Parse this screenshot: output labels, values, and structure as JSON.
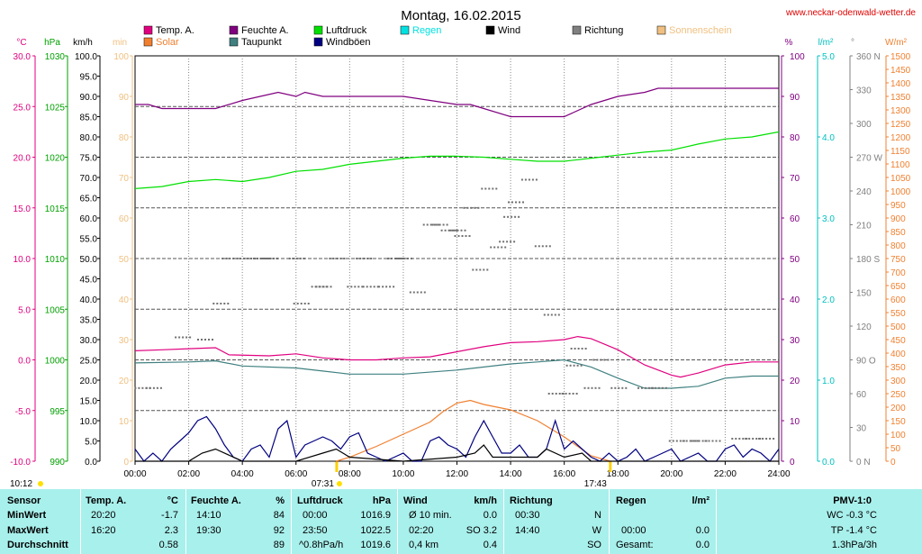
{
  "header": {
    "title": "Montag, 16.02.2015",
    "site": "www.neckar-odenwald-wetter.de"
  },
  "legend": [
    {
      "label": "Temp. A.",
      "color": "#e0007f"
    },
    {
      "label": "Feuchte A.",
      "color": "#800080"
    },
    {
      "label": "Luftdruck",
      "color": "#00e000"
    },
    {
      "label": "Regen",
      "color": "#00e0e0"
    },
    {
      "label": "Wind",
      "color": "#000000"
    },
    {
      "label": "Richtung",
      "color": "#808080"
    },
    {
      "label": "Sonnenschein",
      "color": "#f0c080"
    },
    {
      "label": "Solar",
      "color": "#f08030"
    },
    {
      "label": "Taupunkt",
      "color": "#408080"
    },
    {
      "label": "Windböen",
      "color": "#000080"
    }
  ],
  "axes": {
    "temp_unit": "°C",
    "hpa_unit": "hPa",
    "kmh_unit": "km/h",
    "min_unit": "min",
    "pct_unit": "%",
    "rain_unit": "l/m²",
    "dir_unit": "°",
    "solar_unit": "W/m²",
    "temp_ticks": [
      "30.0",
      "25.0",
      "20.0",
      "15.0",
      "10.0",
      "5.0",
      "0.0",
      "-5.0",
      "-10.0"
    ],
    "hpa_ticks": [
      "1030",
      "1025",
      "1020",
      "1015",
      "1010",
      "1005",
      "1000",
      "995",
      "990"
    ],
    "kmh_ticks": [
      "100.0",
      "95.0",
      "90.0",
      "85.0",
      "80.0",
      "75.0",
      "70.0",
      "65.0",
      "60.0",
      "55.0",
      "50.0",
      "45.0",
      "40.0",
      "35.0",
      "30.0",
      "25.0",
      "20.0",
      "15.0",
      "10.0",
      "5.0",
      "0.0"
    ],
    "min_ticks": [
      "100",
      "90",
      "80",
      "70",
      "60",
      "50",
      "40",
      "30",
      "20",
      "10",
      "0"
    ],
    "pct_ticks": [
      "100",
      "90",
      "80",
      "70",
      "60",
      "50",
      "40",
      "30",
      "20",
      "10",
      "0"
    ],
    "rain_ticks": [
      "5.0",
      "4.0",
      "3.0",
      "2.0",
      "1.0",
      "0.0"
    ],
    "dir_ticks": [
      "360 N",
      "330",
      "300",
      "270 W",
      "240",
      "210",
      "180 S",
      "150",
      "120",
      "90 O",
      "60",
      "30",
      "0 N"
    ],
    "solar_ticks": [
      "1500",
      "1450",
      "1400",
      "1350",
      "1300",
      "1250",
      "1200",
      "1150",
      "1100",
      "1050",
      "1000",
      "950",
      "900",
      "850",
      "800",
      "750",
      "700",
      "650",
      "600",
      "550",
      "500",
      "450",
      "400",
      "350",
      "300",
      "250",
      "200",
      "150",
      "100",
      "50",
      "0"
    ],
    "time_ticks": [
      "00:00",
      "02:00",
      "04:00",
      "06:00",
      "08:00",
      "10:00",
      "12:00",
      "14:00",
      "16:00",
      "18:00",
      "20:00",
      "22:00",
      "24:00"
    ],
    "sun_markers": {
      "daylength": "10:12",
      "sunrise": "07:31",
      "sunset": "17:43"
    }
  },
  "chart_data": {
    "type": "line",
    "x_unit": "time of day",
    "xlim": [
      "00:00",
      "24:00"
    ],
    "series": [
      {
        "name": "Temp. A.",
        "axis": "°C",
        "ylim": [
          -10,
          30
        ],
        "x": [
          "00:00",
          "01:00",
          "02:00",
          "03:00",
          "03:30",
          "05:00",
          "06:00",
          "07:00",
          "08:00",
          "09:00",
          "10:00",
          "11:00",
          "12:00",
          "13:00",
          "14:00",
          "15:00",
          "16:00",
          "16:30",
          "17:00",
          "18:00",
          "19:00",
          "20:00",
          "20:20",
          "21:00",
          "22:00",
          "23:00",
          "24:00"
        ],
        "y": [
          0.9,
          1.0,
          1.1,
          1.2,
          0.5,
          0.4,
          0.6,
          0.2,
          0.0,
          0.0,
          0.2,
          0.3,
          0.8,
          1.3,
          1.7,
          1.8,
          2.0,
          2.3,
          2.1,
          1.0,
          -0.5,
          -1.5,
          -1.7,
          -1.3,
          -0.5,
          -0.2,
          -0.2
        ]
      },
      {
        "name": "Taupunkt",
        "axis": "°C",
        "ylim": [
          -10,
          30
        ],
        "x": [
          "00:00",
          "02:00",
          "03:00",
          "04:00",
          "06:00",
          "07:00",
          "08:00",
          "10:00",
          "12:00",
          "14:00",
          "15:00",
          "16:00",
          "17:00",
          "18:00",
          "19:00",
          "20:00",
          "21:00",
          "22:00",
          "23:00",
          "24:00"
        ],
        "y": [
          -0.3,
          -0.2,
          -0.1,
          -0.6,
          -0.8,
          -1.1,
          -1.4,
          -1.4,
          -1.0,
          -0.4,
          -0.2,
          0.0,
          -0.7,
          -1.8,
          -2.8,
          -2.8,
          -2.6,
          -1.8,
          -1.6,
          -1.6
        ]
      },
      {
        "name": "Feuchte A.",
        "axis": "%",
        "ylim": [
          0,
          100
        ],
        "x": [
          "00:00",
          "00:30",
          "01:00",
          "03:00",
          "04:00",
          "04:40",
          "05:20",
          "06:00",
          "06:20",
          "07:00",
          "08:00",
          "09:00",
          "10:00",
          "11:00",
          "12:00",
          "12:30",
          "13:00",
          "14:00",
          "15:00",
          "16:00",
          "17:00",
          "18:00",
          "19:00",
          "19:30",
          "20:00",
          "21:00",
          "22:00",
          "23:00",
          "24:00"
        ],
        "y": [
          88,
          88,
          87,
          87,
          89,
          90,
          91,
          90,
          91,
          90,
          90,
          90,
          90,
          89,
          88,
          88,
          87,
          85,
          85,
          85,
          88,
          90,
          91,
          92,
          92,
          92,
          92,
          92,
          92
        ]
      },
      {
        "name": "Luftdruck",
        "axis": "hPa",
        "ylim": [
          990,
          1030
        ],
        "x": [
          "00:00",
          "01:00",
          "02:00",
          "03:00",
          "04:00",
          "05:00",
          "06:00",
          "07:00",
          "08:00",
          "09:00",
          "10:00",
          "11:00",
          "12:00",
          "13:00",
          "14:00",
          "15:00",
          "16:00",
          "17:00",
          "18:00",
          "19:00",
          "20:00",
          "21:00",
          "22:00",
          "23:00",
          "24:00"
        ],
        "y": [
          1016.9,
          1017.1,
          1017.6,
          1017.8,
          1017.6,
          1018.0,
          1018.6,
          1018.8,
          1019.3,
          1019.6,
          1019.9,
          1020.1,
          1020.1,
          1020.0,
          1019.8,
          1019.6,
          1019.6,
          1019.9,
          1020.2,
          1020.5,
          1020.7,
          1021.3,
          1021.8,
          1022.0,
          1022.5
        ]
      },
      {
        "name": "Windböen",
        "axis": "km/h",
        "ylim": [
          0,
          100
        ],
        "x": [
          "00:00",
          "00:20",
          "00:40",
          "01:00",
          "01:20",
          "01:40",
          "02:00",
          "02:20",
          "02:40",
          "03:00",
          "03:20",
          "03:40",
          "04:00",
          "04:20",
          "04:40",
          "05:00",
          "05:20",
          "05:40",
          "06:00",
          "06:20",
          "06:40",
          "07:00",
          "07:20",
          "07:40",
          "08:00",
          "08:20",
          "08:40",
          "09:00",
          "09:20",
          "09:40",
          "10:00",
          "10:20",
          "10:40",
          "11:00",
          "11:20",
          "11:40",
          "12:00",
          "12:20",
          "12:40",
          "13:00",
          "13:20",
          "13:40",
          "14:00",
          "14:20",
          "14:40",
          "15:00",
          "15:20",
          "15:40",
          "16:00",
          "16:20",
          "16:40",
          "17:00",
          "17:20",
          "17:40",
          "18:00",
          "18:20",
          "18:40",
          "19:00",
          "19:20",
          "19:40",
          "20:00",
          "20:20",
          "20:40",
          "21:00",
          "21:20",
          "21:40",
          "22:00",
          "22:20",
          "22:40",
          "23:00",
          "23:20",
          "23:40",
          "24:00"
        ],
        "y": [
          3,
          0,
          2,
          0,
          3,
          5,
          7,
          10,
          11,
          8,
          4,
          1,
          0,
          3,
          4,
          1,
          8,
          10,
          1,
          4,
          5,
          6,
          5,
          3,
          6,
          7,
          2,
          1,
          0,
          1,
          2,
          0,
          0,
          5,
          6,
          4,
          3,
          1,
          6,
          10,
          6,
          2,
          2,
          4,
          1,
          1,
          3,
          10,
          3,
          5,
          3,
          1,
          0,
          2,
          0,
          1,
          3,
          0,
          1,
          2,
          3,
          0,
          1,
          2,
          0,
          0,
          3,
          4,
          1,
          3,
          2,
          0,
          3
        ]
      },
      {
        "name": "Wind",
        "axis": "km/h",
        "ylim": [
          0,
          100
        ],
        "x": [
          "00:00",
          "02:00",
          "02:30",
          "03:00",
          "04:00",
          "06:00",
          "07:00",
          "07:30",
          "08:00",
          "10:00",
          "12:00",
          "12:40",
          "13:00",
          "13:20",
          "14:00",
          "15:00",
          "15:20",
          "16:00",
          "16:40",
          "17:00",
          "18:00",
          "20:00",
          "24:00"
        ],
        "y": [
          0,
          0,
          2,
          3,
          0,
          0,
          2,
          3,
          1,
          0,
          1,
          2,
          4,
          1,
          1,
          1,
          3,
          1,
          2,
          0,
          0,
          0,
          0
        ]
      },
      {
        "name": "Solar",
        "axis": "W/m²",
        "ylim": [
          0,
          1500
        ],
        "x": [
          "07:30",
          "08:00",
          "09:00",
          "10:00",
          "11:00",
          "11:30",
          "12:00",
          "12:30",
          "13:00",
          "13:30",
          "14:00",
          "15:00",
          "16:00",
          "16:30",
          "17:00",
          "17:43"
        ],
        "y": [
          0,
          15,
          55,
          100,
          145,
          185,
          215,
          225,
          210,
          200,
          190,
          150,
          90,
          55,
          20,
          0
        ]
      },
      {
        "name": "Richtung",
        "axis": "°",
        "ylim": [
          0,
          360
        ],
        "x": [
          "00:15",
          "00:40",
          "01:45",
          "02:35",
          "03:10",
          "03:30",
          "04:10",
          "04:40",
          "05:00",
          "06:00",
          "06:10",
          "06:50",
          "07:00",
          "07:30",
          "08:10",
          "08:30",
          "08:45",
          "09:20",
          "09:40",
          "10:00",
          "10:30",
          "11:00",
          "11:20",
          "11:40",
          "12:00",
          "12:10",
          "12:30",
          "12:50",
          "13:10",
          "13:30",
          "13:50",
          "14:00",
          "14:10",
          "14:40",
          "15:10",
          "15:30",
          "15:40",
          "16:10",
          "16:20",
          "16:30",
          "17:00",
          "17:20",
          "18:00",
          "19:00",
          "19:30",
          "20:10",
          "20:40",
          "21:00",
          "21:30",
          "22:30",
          "23:00",
          "23:30"
        ],
        "y": [
          65,
          65,
          110,
          108,
          140,
          180,
          180,
          180,
          180,
          180,
          140,
          155,
          155,
          180,
          155,
          180,
          155,
          155,
          180,
          180,
          150,
          210,
          210,
          205,
          205,
          200,
          225,
          170,
          242,
          190,
          195,
          217,
          230,
          250,
          191,
          130,
          60,
          60,
          85,
          100,
          65,
          90,
          65,
          65,
          65,
          18,
          18,
          18,
          18,
          20,
          20,
          20
        ]
      }
    ]
  },
  "table": {
    "headers": {
      "sensor": "Sensor",
      "temp": "Temp. A.",
      "temp_unit": "°C",
      "hum": "Feuchte A.",
      "hum_unit": "%",
      "press": "Luftdruck",
      "press_unit": "hPa",
      "wind": "Wind",
      "wind_unit": "km/h",
      "dir": "Richtung",
      "rain": "Regen",
      "rain_unit": "l/m²",
      "pmv": "PMV-1:0"
    },
    "rows": [
      {
        "label": "MinWert",
        "temp_time": "20:20",
        "temp_val": "-1.7",
        "hum_time": "14:10",
        "hum_val": "84",
        "press_time": "00:00",
        "press_val": "1016.9",
        "wind_time": "Ø 10 min.",
        "wind_val": "0.0",
        "dir_time": "00:30",
        "dir_val": "N",
        "rain_time": "",
        "rain_val": "",
        "pmv": "WC -0.3 °C"
      },
      {
        "label": "MaxWert",
        "temp_time": "16:20",
        "temp_val": "2.3",
        "hum_time": "19:30",
        "hum_val": "92",
        "press_time": "23:50",
        "press_val": "1022.5",
        "wind_time": "02:20",
        "wind_val": "SO 3.2",
        "dir_time": "14:40",
        "dir_val": "W",
        "rain_time": "00:00",
        "rain_val": "0.0",
        "pmv": "TP -1.4 °C"
      },
      {
        "label": "Durchschnitt",
        "temp_time": "",
        "temp_val": "0.58",
        "hum_time": "",
        "hum_val": "89",
        "press_time": "^0.8hPa/h",
        "press_val": "1019.6",
        "wind_time": "0,4 km",
        "wind_val": "0.4",
        "dir_time": "",
        "dir_val": "SO",
        "rain_time": "Gesamt:",
        "rain_val": "0.0",
        "pmv": "1.3hPa/3h"
      }
    ]
  }
}
